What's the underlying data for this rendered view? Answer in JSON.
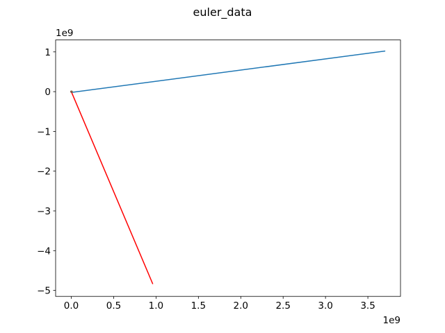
{
  "chart_data": {
    "type": "line",
    "title": "euler_data",
    "xlabel": "",
    "ylabel": "",
    "x_offset_label": "1e9",
    "y_offset_label": "1e9",
    "xlim": [
      -0.185,
      3.885
    ],
    "ylim": [
      -5.15,
      1.3
    ],
    "x_ticks": [
      0,
      0.5,
      1.0,
      1.5,
      2.0,
      2.5,
      3.0,
      3.5
    ],
    "x_tick_labels": [
      "0.0",
      "0.5",
      "1.0",
      "1.5",
      "2.0",
      "2.5",
      "3.0",
      "3.5"
    ],
    "y_ticks": [
      -5,
      -4,
      -3,
      -2,
      -1,
      0,
      1
    ],
    "y_tick_labels": [
      "−5",
      "−4",
      "−3",
      "−2",
      "−1",
      "0",
      "1"
    ],
    "grid": false,
    "series": [
      {
        "color": "#1f77b4",
        "x": [
          0.0,
          3.7
        ],
        "y": [
          -0.02,
          1.02
        ]
      },
      {
        "color": "#ff0000",
        "x": [
          0.0,
          0.96
        ],
        "y": [
          0.0,
          -4.83
        ]
      },
      {
        "color": "#2ca02c",
        "x": [
          0.0,
          0.005
        ],
        "y": [
          0.0,
          0.0
        ]
      },
      {
        "color": "#8c564b",
        "x": [
          0.0,
          0.002
        ],
        "y": [
          0.0,
          0.0
        ]
      }
    ]
  }
}
